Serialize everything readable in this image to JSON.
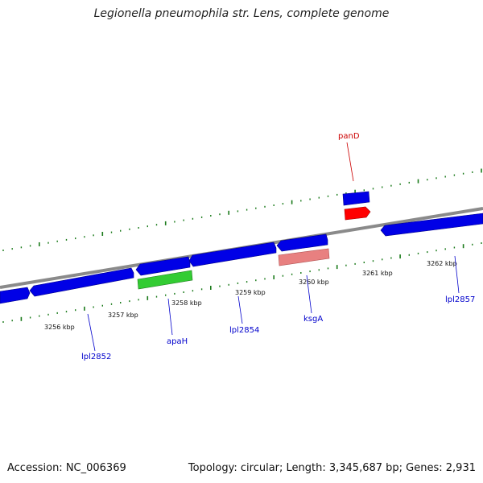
{
  "title": "Legionella pneumophila str. Lens, complete genome",
  "footer": {
    "accession": "Accession: NC_006369",
    "summary": "Topology: circular; Length: 3,345,687 bp; Genes: 2,931"
  },
  "colors": {
    "backbone": "#8a8a8a",
    "tick": "#1a7a1a",
    "gene_default": "#0000e6",
    "gene_green": "#33cc33",
    "gene_red": "#ff0000",
    "gene_pink": "#e88080",
    "label_blue": "#0000cc",
    "label_red": "#cc0000"
  },
  "kbp_labels": [
    "3256 kbp",
    "3257 kbp",
    "3258 kbp",
    "3259 kbp",
    "3260 kbp",
    "3261 kbp",
    "3262 kbp"
  ],
  "gene_labels": [
    {
      "name": "panD",
      "color": "red"
    },
    {
      "name": "lpl2852",
      "color": "blue"
    },
    {
      "name": "apaH",
      "color": "blue"
    },
    {
      "name": "lpl2854",
      "color": "blue"
    },
    {
      "name": "ksgA",
      "color": "blue"
    },
    {
      "name": "lpl2857",
      "color": "blue"
    }
  ]
}
